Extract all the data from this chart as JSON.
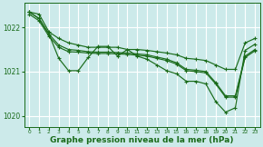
{
  "background_color": "#cceaea",
  "grid_color": "#ffffff",
  "line_color": "#1a6b1a",
  "xlabel": "Graphe pression niveau de la mer (hPa)",
  "xlabel_fontsize": 6.5,
  "xlim": [
    -0.5,
    23.5
  ],
  "ylim": [
    1019.75,
    1022.55
  ],
  "yticks": [
    1020,
    1021,
    1022
  ],
  "xticks": [
    0,
    1,
    2,
    3,
    4,
    5,
    6,
    7,
    8,
    9,
    10,
    11,
    12,
    13,
    14,
    15,
    16,
    17,
    18,
    19,
    20,
    21,
    22,
    23
  ],
  "upper": [
    1022.35,
    1022.3,
    1021.9,
    1021.75,
    1021.65,
    1021.6,
    1021.55,
    1021.55,
    1021.55,
    1021.55,
    1021.5,
    1021.5,
    1021.48,
    1021.45,
    1021.42,
    1021.38,
    1021.3,
    1021.28,
    1021.25,
    1021.15,
    1021.05,
    1021.05,
    1021.65,
    1021.75
  ],
  "mid1": [
    1022.35,
    1022.2,
    1021.85,
    1021.6,
    1021.5,
    1021.48,
    1021.45,
    1021.44,
    1021.44,
    1021.43,
    1021.42,
    1021.4,
    1021.38,
    1021.33,
    1021.28,
    1021.2,
    1021.05,
    1021.03,
    1021.0,
    1020.75,
    1020.45,
    1020.45,
    1021.35,
    1021.5
  ],
  "mid2": [
    1022.3,
    1022.15,
    1021.8,
    1021.55,
    1021.45,
    1021.44,
    1021.42,
    1021.41,
    1021.41,
    1021.4,
    1021.39,
    1021.37,
    1021.35,
    1021.3,
    1021.25,
    1021.17,
    1021.02,
    1021.0,
    1020.97,
    1020.72,
    1020.42,
    1020.42,
    1021.32,
    1021.47
  ],
  "lower": [
    1022.35,
    1022.2,
    1021.85,
    1021.3,
    1021.02,
    1021.02,
    1021.32,
    1021.57,
    1021.57,
    1021.35,
    1021.5,
    1021.35,
    1021.28,
    1021.15,
    1021.02,
    1020.95,
    1020.78,
    1020.78,
    1020.72,
    1020.32,
    1020.08,
    1020.18,
    1021.48,
    1021.62
  ]
}
